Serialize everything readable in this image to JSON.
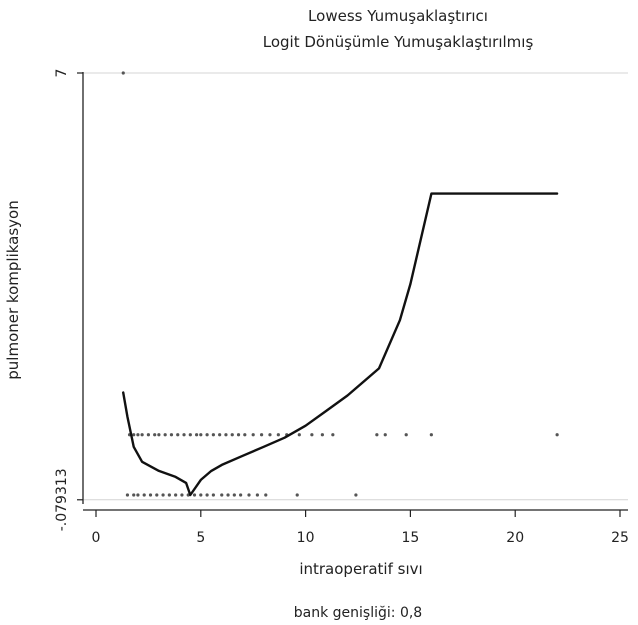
{
  "chart_data": {
    "type": "scatter",
    "title": "Lowess Yumuşaklaştırıcı",
    "subtitle": "Logit Dönüşümle Yumuşaklaştırılmış",
    "xlabel": "intraoperatif sıvı",
    "ylabel": "pulmoner komplikasyon",
    "note": "bank genişliği: 0,8",
    "xlim": [
      0,
      25
    ],
    "x_ticks": [
      0,
      5,
      10,
      15,
      20,
      25
    ],
    "x_tick_labels": [
      "0",
      "5",
      "10",
      "15",
      "20",
      "25"
    ],
    "y_ticks": [
      -0.079313,
      7
    ],
    "y_tick_labels": [
      "-.079313",
      "7"
    ],
    "grid": "horizontal lines at y ticks",
    "series": [
      {
        "kind": "points",
        "points": [
          [
            1.3,
            7
          ],
          [
            1.6,
            1.0
          ],
          [
            1.8,
            1.0
          ],
          [
            2.0,
            1.0
          ],
          [
            2.2,
            1.0
          ],
          [
            2.5,
            1.0
          ],
          [
            2.8,
            1.0
          ],
          [
            3.0,
            1.0
          ],
          [
            3.3,
            1.0
          ],
          [
            3.6,
            1.0
          ],
          [
            3.9,
            1.0
          ],
          [
            4.2,
            1.0
          ],
          [
            4.5,
            1.0
          ],
          [
            4.8,
            1.0
          ],
          [
            5.0,
            1.0
          ],
          [
            5.3,
            1.0
          ],
          [
            5.6,
            1.0
          ],
          [
            5.9,
            1.0
          ],
          [
            6.2,
            1.0
          ],
          [
            6.5,
            1.0
          ],
          [
            6.8,
            1.0
          ],
          [
            7.1,
            1.0
          ],
          [
            7.5,
            1.0
          ],
          [
            7.9,
            1.0
          ],
          [
            8.3,
            1.0
          ],
          [
            8.7,
            1.0
          ],
          [
            9.1,
            1.0
          ],
          [
            9.7,
            1.0
          ],
          [
            10.3,
            1.0
          ],
          [
            10.8,
            1.0
          ],
          [
            11.3,
            1.0
          ],
          [
            13.4,
            1.0
          ],
          [
            13.8,
            1.0
          ],
          [
            14.8,
            1.0
          ],
          [
            16.0,
            1.0
          ],
          [
            22.0,
            1.0
          ],
          [
            1.5,
            0
          ],
          [
            1.8,
            0
          ],
          [
            2.0,
            0
          ],
          [
            2.3,
            0
          ],
          [
            2.6,
            0
          ],
          [
            2.9,
            0
          ],
          [
            3.2,
            0
          ],
          [
            3.5,
            0
          ],
          [
            3.8,
            0
          ],
          [
            4.1,
            0
          ],
          [
            4.4,
            0
          ],
          [
            4.7,
            0
          ],
          [
            5.0,
            0
          ],
          [
            5.3,
            0
          ],
          [
            5.6,
            0
          ],
          [
            6.0,
            0
          ],
          [
            6.3,
            0
          ],
          [
            6.6,
            0
          ],
          [
            6.9,
            0
          ],
          [
            7.3,
            0
          ],
          [
            7.7,
            0
          ],
          [
            8.1,
            0
          ],
          [
            9.6,
            0
          ],
          [
            12.4,
            0
          ]
        ]
      },
      {
        "kind": "line",
        "points": [
          [
            1.3,
            1.7
          ],
          [
            1.5,
            1.3
          ],
          [
            1.8,
            0.8
          ],
          [
            2.2,
            0.55
          ],
          [
            3.0,
            0.4
          ],
          [
            3.8,
            0.3
          ],
          [
            4.3,
            0.2
          ],
          [
            4.5,
            0.0
          ],
          [
            5.0,
            0.25
          ],
          [
            5.5,
            0.4
          ],
          [
            6.0,
            0.5
          ],
          [
            7.0,
            0.65
          ],
          [
            8.0,
            0.8
          ],
          [
            9.0,
            0.95
          ],
          [
            10.0,
            1.15
          ],
          [
            11.0,
            1.4
          ],
          [
            12.0,
            1.65
          ],
          [
            13.5,
            2.1
          ],
          [
            14.5,
            2.9
          ],
          [
            15.0,
            3.5
          ],
          [
            16.0,
            5.0
          ],
          [
            22.0,
            5.0
          ]
        ]
      }
    ]
  }
}
